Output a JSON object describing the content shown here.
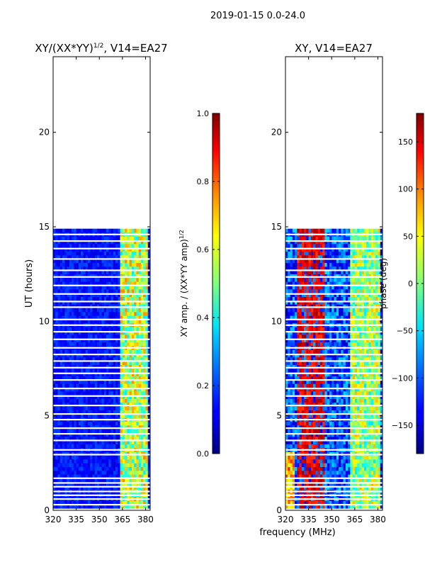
{
  "figure": {
    "suptitle": "2019-01-15 0.0-24.0",
    "xlabel": "frequency (MHz)"
  },
  "chart_data": [
    {
      "type": "heatmap",
      "title_main": "XY/(XX*YY)",
      "title_sup": "1/2",
      "title_rest": ", V14=EA27",
      "xlabel": "",
      "ylabel": "UT (hours)",
      "xlim": [
        320,
        383
      ],
      "ylim": [
        0,
        24
      ],
      "xticks": [
        320,
        335,
        350,
        365,
        380
      ],
      "yticks": [
        0,
        5,
        10,
        15,
        20
      ],
      "data_extent_hours": [
        0.1,
        14.9
      ],
      "colorbar": {
        "label_main": "XY amp. / (XX*YY amp)",
        "label_sup": "1/2",
        "range": [
          0.0,
          1.0
        ],
        "ticks": [
          "0.0",
          "0.2",
          "0.4",
          "0.6",
          "0.8",
          "1.0"
        ],
        "tick_values": [
          0.0,
          0.2,
          0.4,
          0.6,
          0.8,
          1.0
        ]
      }
    },
    {
      "type": "heatmap",
      "title_main": "XY, V14=EA27",
      "title_sup": "",
      "title_rest": "",
      "xlabel": "frequency (MHz)",
      "ylabel": "",
      "xlim": [
        320,
        383
      ],
      "ylim": [
        0,
        24
      ],
      "xticks": [
        320,
        335,
        350,
        365,
        380
      ],
      "yticks": [
        0,
        5,
        10,
        15,
        20
      ],
      "data_extent_hours": [
        0.1,
        14.9
      ],
      "colorbar": {
        "label_main": "phase (deg)",
        "label_sup": "",
        "range": [
          -180,
          180
        ],
        "ticks": [
          "−150",
          "−100",
          "−50",
          "0",
          "50",
          "100",
          "150"
        ],
        "tick_values": [
          -150,
          -100,
          -50,
          0,
          50,
          100,
          150
        ]
      }
    }
  ],
  "colors": {
    "jet_low": "#000080",
    "jet_mid": "#7fff7f",
    "jet_high": "#800000",
    "flag": "#ffffff",
    "background": "#ffffff"
  }
}
